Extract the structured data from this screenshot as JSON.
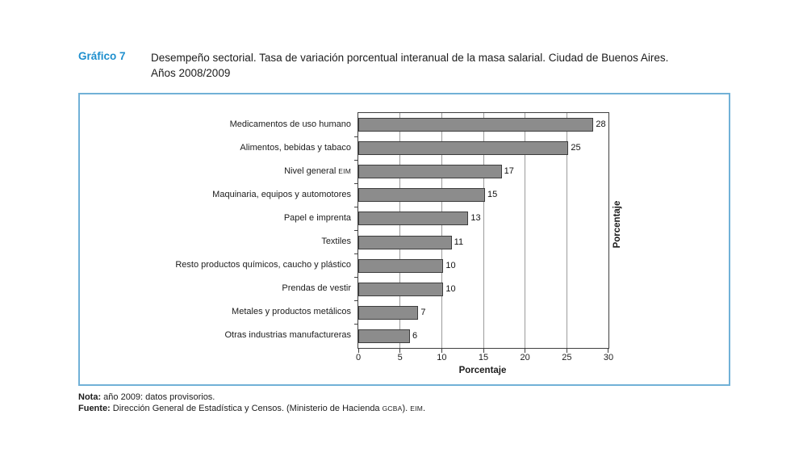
{
  "header": {
    "graf_label": "Gráfico 7",
    "title_line1": "Desempeño sectorial. Tasa de variación porcentual interanual de la masa salarial. Ciudad de Buenos Aires.",
    "title_line2": "Años 2008/2009"
  },
  "chart_data": {
    "type": "bar",
    "orientation": "horizontal",
    "categories": [
      {
        "label": "Medicamentos de uso humano",
        "suffix": ""
      },
      {
        "label": "Alimentos, bebidas y tabaco",
        "suffix": ""
      },
      {
        "label": "Nivel general",
        "suffix": "EIM"
      },
      {
        "label": "Maquinaria, equipos y automotores",
        "suffix": ""
      },
      {
        "label": "Papel e imprenta",
        "suffix": ""
      },
      {
        "label": "Textiles",
        "suffix": ""
      },
      {
        "label": "Resto productos químicos, caucho y plástico",
        "suffix": ""
      },
      {
        "label": "Prendas de vestir",
        "suffix": ""
      },
      {
        "label": "Metales y productos metálicos",
        "suffix": ""
      },
      {
        "label": "Otras industrias manufactureras",
        "suffix": ""
      }
    ],
    "values": [
      28,
      25,
      17,
      15,
      13,
      11,
      10,
      10,
      7,
      6
    ],
    "xlim": [
      0,
      30
    ],
    "x_ticks": [
      0,
      5,
      10,
      15,
      20,
      25,
      30
    ],
    "xlabel": "Porcentaje",
    "right_axis_label": "Porcentaje",
    "grid": true,
    "legend": "none",
    "bar_color": "#8c8c8c",
    "bar_border_color": "#3d3d3d"
  },
  "footer": {
    "note_label": "Nota:",
    "note_text": " año 2009: datos provisorios.",
    "source_label": "Fuente:",
    "source_text_1": " Dirección General de Estadística y Censos. (Ministerio de Hacienda ",
    "source_smallcaps_1": "GCBA",
    "source_text_2": "). ",
    "source_smallcaps_2": "EIM",
    "source_text_3": "."
  },
  "colors": {
    "accent_blue": "#1e8fce",
    "box_border": "#71b1d7",
    "grid_color": "#9c9c9c"
  }
}
